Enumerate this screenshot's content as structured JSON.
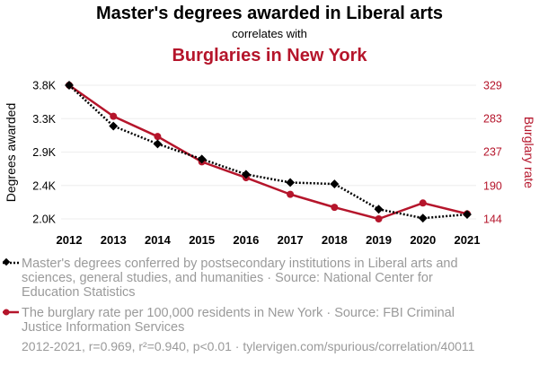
{
  "chart_data": {
    "type": "line",
    "title": "Master's degrees awarded in Liberal arts",
    "subtitle": "correlates with",
    "title2": "Burglaries in New York",
    "x": [
      2012,
      2013,
      2014,
      2015,
      2016,
      2017,
      2018,
      2019,
      2020,
      2021
    ],
    "ylabel_left": "Degrees awarded",
    "ylabel_right": "Burglary rate",
    "y_left_ticks": [
      {
        "value": 2000,
        "label": "2.0K"
      },
      {
        "value": 2450,
        "label": "2.4K"
      },
      {
        "value": 2900,
        "label": "2.9K"
      },
      {
        "value": 3350,
        "label": "3.3K"
      },
      {
        "value": 3800,
        "label": "3.8K"
      }
    ],
    "y_right_ticks": [
      {
        "value": 144,
        "label": "144"
      },
      {
        "value": 190,
        "label": "190"
      },
      {
        "value": 237,
        "label": "237"
      },
      {
        "value": 283,
        "label": "283"
      },
      {
        "value": 329,
        "label": "329"
      }
    ],
    "y_left_range": [
      2000,
      3800
    ],
    "y_right_range": [
      144,
      329
    ],
    "grid": true,
    "series": [
      {
        "name": "Master's degrees conferred by postsecondary institutions in Liberal arts and sciences, general studies, and humanities · Source: National Center for Education Statistics",
        "axis": "left",
        "color": "#000000",
        "style": "dotted",
        "marker": "diamond",
        "values": [
          3800,
          3250,
          3010,
          2805,
          2600,
          2490,
          2470,
          2130,
          2010,
          2060
        ]
      },
      {
        "name": "The burglary rate per 100,000 residents in New York · Source: FBI Criminal Justice Information Services",
        "axis": "right",
        "color": "#b5152b",
        "style": "solid",
        "marker": "circle",
        "values": [
          329,
          286,
          258,
          223,
          201,
          178,
          160,
          144,
          166,
          151
        ]
      }
    ],
    "footer": "2012-2021, r=0.969, r²=0.940, p<0.01 · tylervigen.com/spurious/correlation/40011"
  }
}
